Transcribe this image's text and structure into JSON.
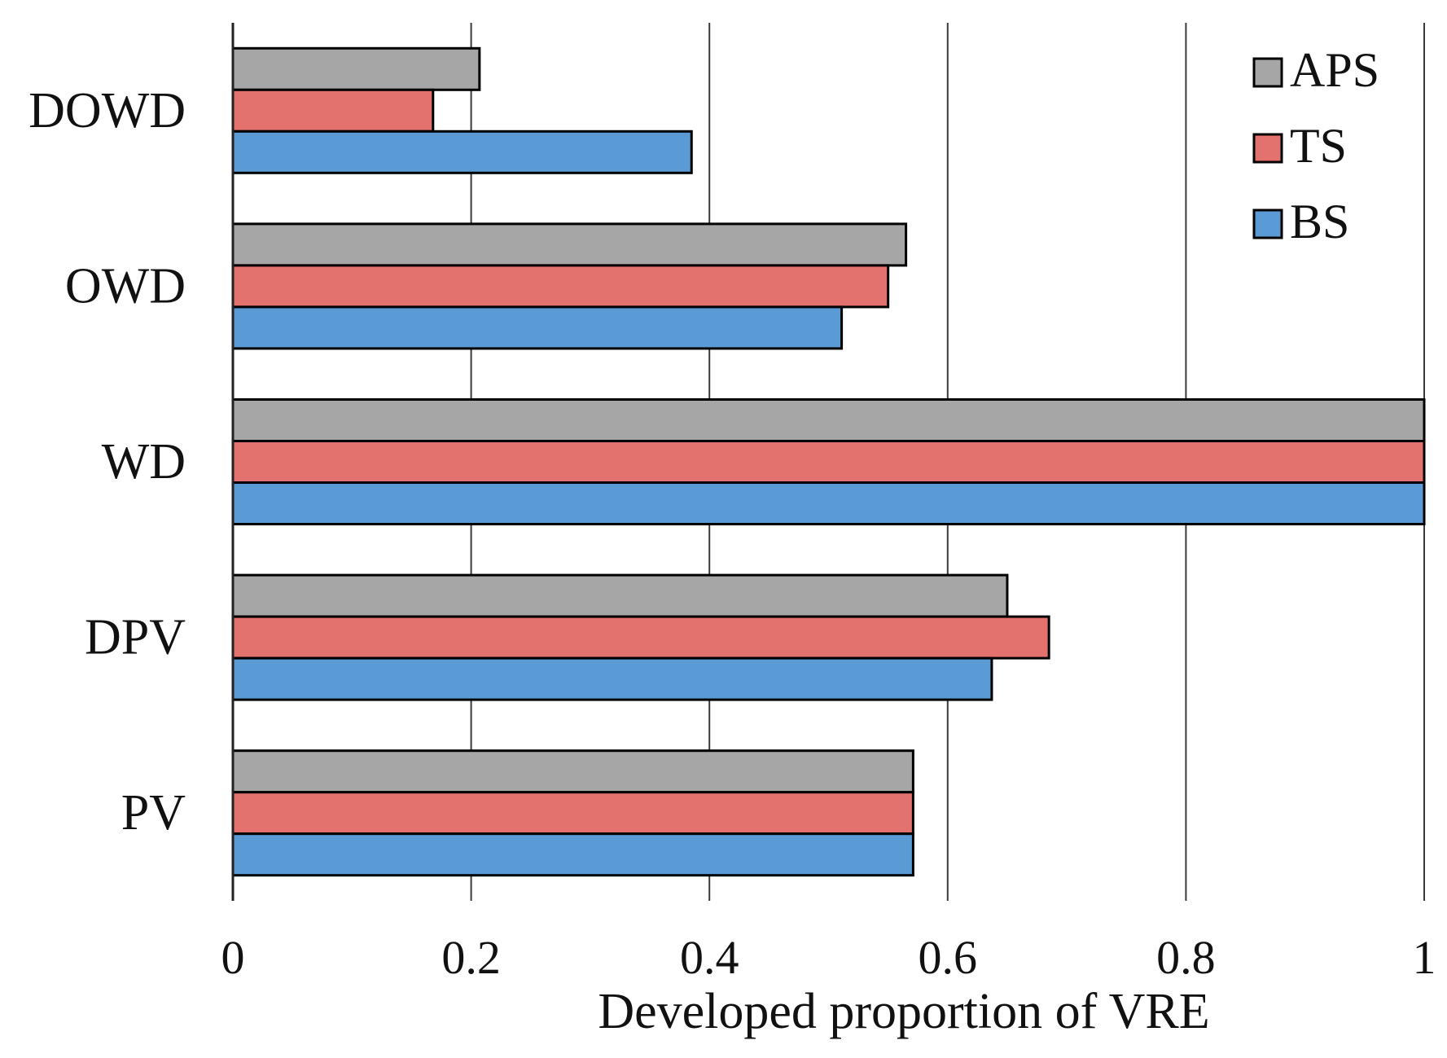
{
  "chart_data": {
    "type": "bar",
    "orientation": "horizontal",
    "title": "",
    "xlabel": "Developed proportion of VRE",
    "ylabel": "",
    "categories": [
      "DOWD",
      "OWD",
      "WD",
      "DPV",
      "PV"
    ],
    "xlim": [
      0,
      1
    ],
    "xticks": [
      0,
      0.2,
      0.4,
      0.6,
      0.8,
      1
    ],
    "xtick_labels": [
      "0",
      "0.2",
      "0.4",
      "0.6",
      "0.8",
      "1"
    ],
    "grid": "vertical",
    "legend_position": "top-right",
    "series": [
      {
        "name": "APS",
        "color": "#a6a6a6",
        "values": [
          0.207,
          0.565,
          1.0,
          0.65,
          0.571
        ]
      },
      {
        "name": "TS",
        "color": "#e3716d",
        "values": [
          0.168,
          0.55,
          1.0,
          0.685,
          0.571
        ]
      },
      {
        "name": "BS",
        "color": "#5b9bd5",
        "values": [
          0.385,
          0.511,
          1.0,
          0.637,
          0.571
        ]
      }
    ]
  }
}
